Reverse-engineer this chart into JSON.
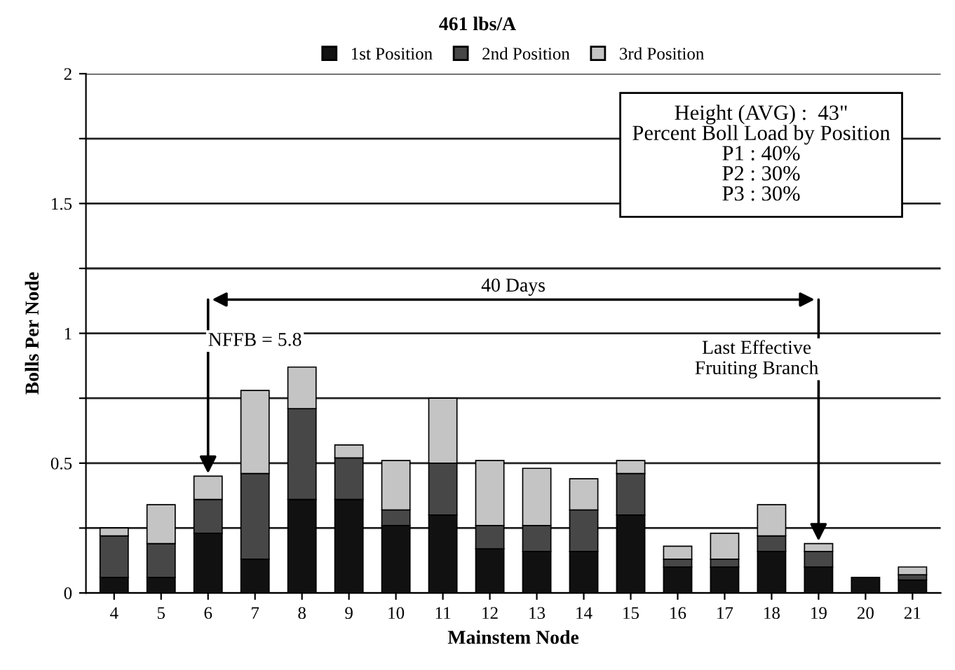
{
  "chart_data": {
    "type": "bar",
    "stacked": true,
    "title": "461 lbs/A",
    "xlabel": "Mainstem Node",
    "ylabel": "Bolls Per Node",
    "categories": [
      "4",
      "5",
      "6",
      "7",
      "8",
      "9",
      "10",
      "11",
      "12",
      "13",
      "14",
      "15",
      "16",
      "17",
      "18",
      "19",
      "20",
      "21"
    ],
    "series": [
      {
        "name": "1st Position",
        "color": "#111111",
        "values": [
          0.06,
          0.06,
          0.23,
          0.13,
          0.36,
          0.36,
          0.26,
          0.3,
          0.17,
          0.16,
          0.16,
          0.3,
          0.1,
          0.1,
          0.16,
          0.1,
          0.06,
          0.05
        ]
      },
      {
        "name": "2nd Position",
        "color": "#474747",
        "values": [
          0.16,
          0.13,
          0.13,
          0.33,
          0.35,
          0.16,
          0.06,
          0.2,
          0.09,
          0.1,
          0.16,
          0.16,
          0.03,
          0.03,
          0.06,
          0.06,
          null,
          0.02
        ]
      },
      {
        "name": "3rd Position",
        "color": "#c4c4c4",
        "values": [
          0.03,
          0.15,
          0.09,
          0.32,
          0.16,
          0.05,
          0.19,
          0.25,
          0.25,
          0.22,
          0.12,
          0.05,
          0.05,
          0.1,
          0.12,
          0.03,
          null,
          0.03
        ]
      }
    ],
    "ylim": [
      0,
      2
    ],
    "yticks": [
      0,
      {
        "value": 0.25,
        "label": null
      },
      0.5,
      {
        "value": 0.75,
        "label": null
      },
      1,
      {
        "value": 1.25,
        "label": null
      },
      1.5,
      {
        "value": 1.75,
        "label": null
      },
      2
    ],
    "grid": "y",
    "legend": "top",
    "annotations": [
      "40 Days",
      {
        "text": "NFFB = 5.8",
        "x": "6",
        "y": 0.45
      },
      {
        "text": "Last Effective\nFruiting Branch",
        "x": "19",
        "y": 0.19
      },
      "Height (AVG) :  43\"\nPercent Boll Load by Position\nP1 : 40%\nP2 : 30%\nP3 : 30%"
    ]
  }
}
